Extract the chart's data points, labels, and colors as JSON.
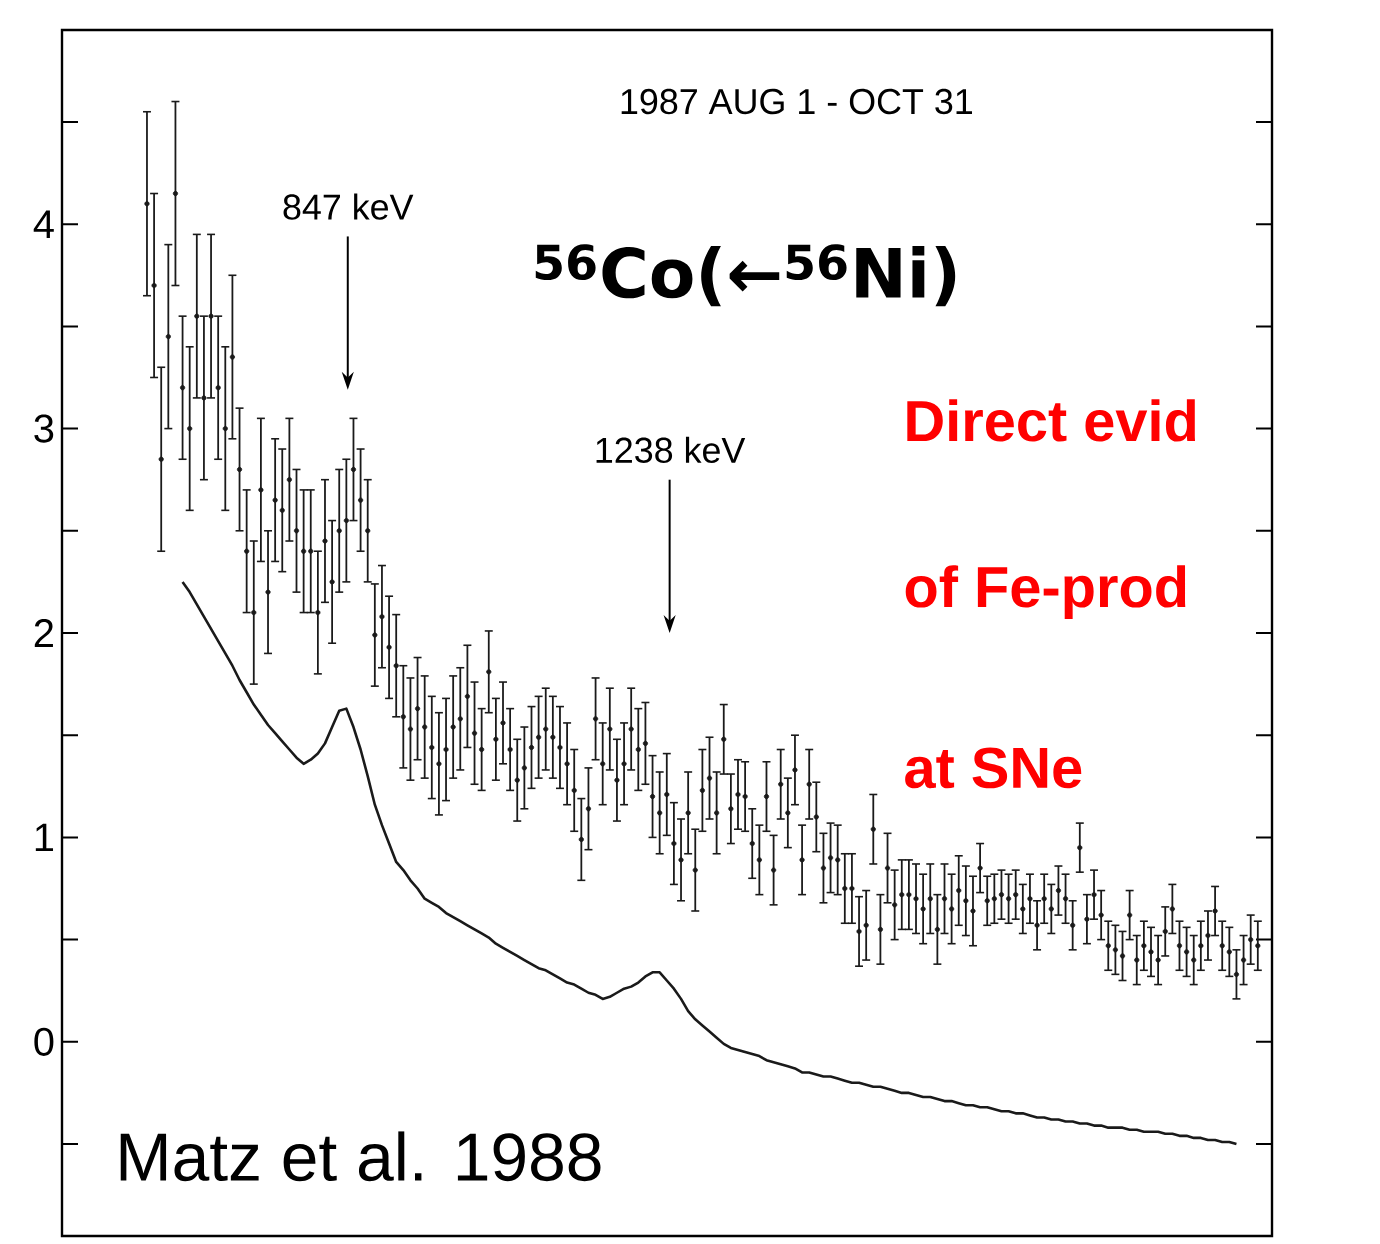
{
  "chart_data": {
    "type": "scatter",
    "categories": [
      null,
      null,
      null,
      null,
      null,
      null,
      null,
      null,
      null,
      null,
      null,
      null,
      null,
      null,
      null,
      null,
      null,
      null,
      null,
      null,
      null,
      null,
      null,
      null,
      null,
      null,
      null,
      null,
      null,
      null,
      null,
      null,
      null,
      null,
      null,
      null,
      null,
      null,
      null,
      null,
      null,
      null,
      null,
      null,
      null,
      null,
      null,
      null,
      null,
      null,
      null,
      null,
      null,
      null,
      null,
      null,
      null,
      null,
      null,
      null,
      null,
      null,
      null,
      null,
      null,
      null,
      null,
      null,
      null,
      null,
      null,
      null,
      null,
      null,
      null,
      null,
      null,
      null,
      null,
      null,
      null,
      null,
      null,
      null,
      null,
      null,
      null,
      null,
      null,
      null,
      null,
      null,
      null,
      null,
      null,
      null,
      null,
      null,
      null,
      null,
      null,
      null,
      null,
      null,
      null,
      null,
      null,
      null,
      null,
      null,
      null,
      null,
      null,
      null,
      null,
      null,
      null,
      null,
      null,
      null,
      null,
      null,
      null,
      null,
      null,
      null,
      null,
      null,
      null,
      null,
      null,
      null,
      null,
      null,
      null,
      null,
      null,
      null,
      null,
      null,
      null,
      null,
      null,
      null,
      null,
      null,
      null,
      null,
      null,
      null,
      null,
      null,
      null,
      null,
      null,
      null,
      null
    ],
    "ylim": [
      -0.95,
      4.95
    ],
    "yticks": [
      {
        "value": -0.5,
        "label": null
      },
      0,
      {
        "value": 0.5,
        "label": null
      },
      1,
      {
        "value": 1.5,
        "label": null
      },
      2,
      {
        "value": 2.5,
        "label": null
      },
      3,
      {
        "value": 3.5,
        "label": null
      },
      4,
      {
        "value": 4.5,
        "label": null
      }
    ],
    "tick_labels": "y",
    "marker": "circle",
    "annotations": [
      "1987 AUG 1 - OCT 31",
      "847 keV",
      "1238 keV",
      "$^{56}$Co(←$^{56}$Ni)",
      "Direct evid",
      "of Fe-prod",
      "at SNe",
      "Matz et al. 1988"
    ],
    "series": [
      {
        "color": "#1a1a1a",
        "values": [
          4.1,
          3.7,
          2.85,
          3.45,
          4.15,
          3.2,
          3.0,
          3.55,
          3.15,
          3.55,
          3.2,
          3.0,
          3.35,
          2.8,
          2.4,
          2.1,
          2.7,
          2.2,
          2.65,
          2.6,
          2.75,
          2.5,
          2.4,
          2.4,
          2.1,
          2.45,
          2.25,
          2.5,
          2.55,
          2.8,
          2.65,
          2.5,
          1.99,
          2.08,
          1.93,
          1.84,
          1.59,
          1.53,
          1.63,
          1.54,
          1.44,
          1.36,
          1.43,
          1.54,
          1.58,
          1.69,
          1.51,
          1.43,
          1.81,
          1.48,
          1.56,
          1.43,
          1.28,
          1.34,
          1.44,
          1.49,
          1.53,
          1.49,
          1.44,
          1.36,
          1.23,
          0.99,
          1.14,
          1.58,
          1.36,
          1.53,
          1.28,
          1.36,
          1.53,
          1.43,
          1.46,
          1.2,
          1.12,
          1.21,
          0.97,
          0.89,
          1.12,
          0.84,
          1.23,
          1.29,
          1.12,
          1.48,
          1.14,
          1.21,
          1.2,
          0.97,
          0.89,
          1.2,
          0.84,
          1.26,
          1.12,
          1.33,
          0.89,
          1.26,
          1.1,
          0.85,
          0.9,
          0.89,
          0.75,
          0.75,
          0.54,
          0.57,
          1.04,
          0.55,
          0.85,
          0.67,
          0.72,
          0.72,
          0.7,
          0.65,
          0.7,
          0.55,
          0.7,
          0.65,
          0.74,
          0.69,
          0.64,
          0.85,
          0.69,
          0.7,
          0.72,
          0.7,
          0.72,
          0.65,
          0.7,
          0.57,
          0.7,
          0.65,
          0.74,
          0.7,
          0.57,
          0.95,
          0.6,
          0.72,
          0.62,
          0.47,
          0.45,
          0.42,
          0.62,
          0.4,
          0.47,
          0.44,
          0.4,
          0.54,
          0.65,
          0.47,
          0.44,
          0.4,
          0.47,
          0.52,
          0.64,
          0.47,
          0.44,
          0.33,
          0.4,
          0.5,
          0.47
        ],
        "errors": [
          0.45,
          0.45,
          0.45,
          0.45,
          0.45,
          0.35,
          0.4,
          0.4,
          0.4,
          0.4,
          0.35,
          0.4,
          0.4,
          0.3,
          0.3,
          0.35,
          0.35,
          0.3,
          0.3,
          0.3,
          0.3,
          0.3,
          0.3,
          0.3,
          0.3,
          0.3,
          0.3,
          0.3,
          0.3,
          0.25,
          0.25,
          0.25,
          0.25,
          0.25,
          0.25,
          0.25,
          0.25,
          0.25,
          0.25,
          0.25,
          0.25,
          0.25,
          0.25,
          0.25,
          0.25,
          0.25,
          0.25,
          0.2,
          0.2,
          0.2,
          0.2,
          0.2,
          0.2,
          0.2,
          0.2,
          0.2,
          0.2,
          0.2,
          0.2,
          0.2,
          0.2,
          0.2,
          0.2,
          0.2,
          0.2,
          0.2,
          0.2,
          0.2,
          0.2,
          0.2,
          0.2,
          0.2,
          0.2,
          0.2,
          0.2,
          0.2,
          0.2,
          0.2,
          0.2,
          0.2,
          0.2,
          0.17,
          0.17,
          0.17,
          0.17,
          0.17,
          0.17,
          0.17,
          0.17,
          0.17,
          0.17,
          0.17,
          0.17,
          0.17,
          0.17,
          0.17,
          0.17,
          0.17,
          0.17,
          0.17,
          0.17,
          0.17,
          0.17,
          0.17,
          0.17,
          0.17,
          0.17,
          0.17,
          0.17,
          0.17,
          0.17,
          0.17,
          0.17,
          0.17,
          0.17,
          0.17,
          0.17,
          0.12,
          0.12,
          0.12,
          0.12,
          0.12,
          0.12,
          0.12,
          0.12,
          0.12,
          0.12,
          0.12,
          0.12,
          0.12,
          0.12,
          0.12,
          0.12,
          0.12,
          0.12,
          0.12,
          0.12,
          0.12,
          0.12,
          0.12,
          0.12,
          0.12,
          0.12,
          0.12,
          0.12,
          0.12,
          0.12,
          0.12,
          0.12,
          0.12,
          0.12,
          0.12,
          0.12,
          0.12,
          0.12,
          0.12,
          0.12
        ]
      },
      {
        "type": "line",
        "color": "#1a1a1a",
        "marker": "none",
        "line_style": "solid",
        "values": [
          null,
          null,
          null,
          null,
          null,
          2.25,
          2.2,
          2.14,
          2.08,
          2.02,
          1.96,
          1.9,
          1.84,
          1.77,
          1.71,
          1.65,
          1.6,
          1.55,
          1.51,
          1.47,
          1.43,
          1.39,
          1.36,
          1.38,
          1.41,
          1.46,
          1.54,
          1.62,
          1.63,
          1.54,
          1.43,
          1.3,
          1.16,
          1.06,
          0.97,
          0.88,
          0.84,
          0.79,
          0.75,
          0.7,
          0.68,
          0.66,
          0.63,
          0.61,
          0.59,
          0.57,
          0.55,
          0.53,
          0.51,
          0.48,
          0.46,
          0.44,
          0.42,
          0.4,
          0.38,
          0.36,
          0.35,
          0.33,
          0.31,
          0.29,
          0.28,
          0.26,
          0.24,
          0.23,
          0.21,
          0.22,
          0.24,
          0.26,
          0.27,
          0.29,
          0.32,
          0.34,
          0.34,
          0.3,
          0.26,
          0.21,
          0.15,
          0.11,
          0.08,
          0.05,
          0.02,
          -0.01,
          -0.03,
          -0.04,
          -0.05,
          -0.06,
          -0.07,
          -0.09,
          -0.1,
          -0.11,
          -0.12,
          -0.13,
          -0.15,
          -0.15,
          -0.16,
          -0.17,
          -0.17,
          -0.18,
          -0.19,
          -0.2,
          -0.2,
          -0.21,
          -0.22,
          -0.22,
          -0.23,
          -0.24,
          -0.25,
          -0.25,
          -0.26,
          -0.27,
          -0.27,
          -0.28,
          -0.29,
          -0.29,
          -0.3,
          -0.31,
          -0.31,
          -0.32,
          -0.32,
          -0.33,
          -0.34,
          -0.34,
          -0.35,
          -0.35,
          -0.36,
          -0.37,
          -0.37,
          -0.38,
          -0.38,
          -0.39,
          -0.39,
          -0.4,
          -0.4,
          -0.41,
          -0.41,
          -0.42,
          -0.42,
          -0.42,
          -0.43,
          -0.43,
          -0.44,
          -0.44,
          -0.44,
          -0.45,
          -0.45,
          -0.46,
          -0.46,
          -0.47,
          -0.47,
          -0.48,
          -0.48,
          -0.49,
          -0.49,
          -0.5,
          null,
          null,
          null
        ]
      }
    ]
  }
}
